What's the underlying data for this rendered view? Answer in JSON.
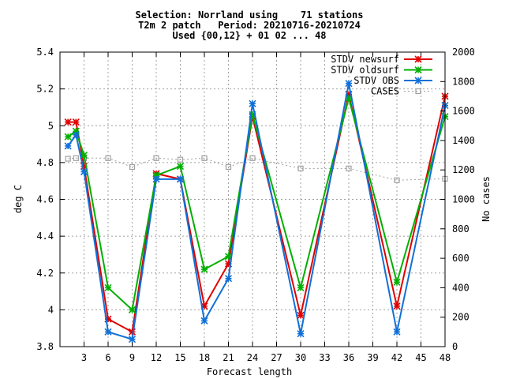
{
  "chart_data": {
    "type": "line",
    "title": [
      "Selection: Norrland using    71 stations",
      "T2m 2 patch   Period: 20210716-20210724",
      "Used {00,12} + 01 02 ... 48"
    ],
    "xlabel": "Forecast length",
    "ylabel": "deg C",
    "y2label": "No cases",
    "xlim": [
      0,
      48
    ],
    "ylim": [
      3.8,
      5.4
    ],
    "y2lim": [
      0,
      2000
    ],
    "xticks": [
      3,
      6,
      9,
      12,
      15,
      18,
      21,
      24,
      27,
      30,
      33,
      36,
      39,
      42,
      45,
      48
    ],
    "yticks": [
      3.8,
      4.0,
      4.2,
      4.4,
      4.6,
      4.8,
      5.0,
      5.2,
      5.4
    ],
    "ytick_labels": [
      "3.8",
      "4",
      "4.2",
      "4.4",
      "4.6",
      "4.8",
      "5",
      "5.2",
      "5.4"
    ],
    "y2ticks": [
      0,
      200,
      400,
      600,
      800,
      1000,
      1200,
      1400,
      1600,
      1800,
      2000
    ],
    "grid": true,
    "legend_position": "top-right",
    "series": [
      {
        "name": "STDV newsurf",
        "color": "#e00000",
        "axis": "y",
        "marker": "star",
        "x": [
          1,
          2,
          3,
          6,
          9,
          12,
          15,
          18,
          21,
          24,
          30,
          36,
          42,
          48
        ],
        "values": [
          5.02,
          5.02,
          4.78,
          3.95,
          3.88,
          4.74,
          4.71,
          4.02,
          4.25,
          5.05,
          3.97,
          5.17,
          4.02,
          5.16
        ]
      },
      {
        "name": "STDV oldsurf",
        "color": "#00b000",
        "axis": "y",
        "marker": "star",
        "x": [
          1,
          2,
          3,
          6,
          9,
          12,
          15,
          18,
          21,
          24,
          30,
          36,
          42,
          48
        ],
        "values": [
          4.94,
          4.97,
          4.84,
          4.12,
          4.0,
          4.73,
          4.78,
          4.22,
          4.29,
          5.06,
          4.12,
          5.15,
          4.15,
          5.05
        ]
      },
      {
        "name": "STDV OBS",
        "color": "#1070d8",
        "axis": "y",
        "marker": "star",
        "x": [
          1,
          2,
          3,
          6,
          9,
          12,
          15,
          18,
          21,
          24,
          30,
          36,
          42,
          48
        ],
        "values": [
          4.89,
          4.95,
          4.75,
          3.88,
          3.84,
          4.71,
          4.71,
          3.94,
          4.17,
          5.12,
          3.87,
          5.23,
          3.88,
          5.11
        ]
      },
      {
        "name": "CASES",
        "color": "#a0a0a0",
        "axis": "y2",
        "marker": "square",
        "dashed": true,
        "x": [
          1,
          2,
          3,
          6,
          9,
          12,
          15,
          18,
          21,
          24,
          30,
          36,
          42,
          48
        ],
        "values": [
          1276,
          1280,
          1280,
          1280,
          1220,
          1280,
          1270,
          1280,
          1220,
          1280,
          1210,
          1210,
          1130,
          1140
        ]
      }
    ]
  }
}
